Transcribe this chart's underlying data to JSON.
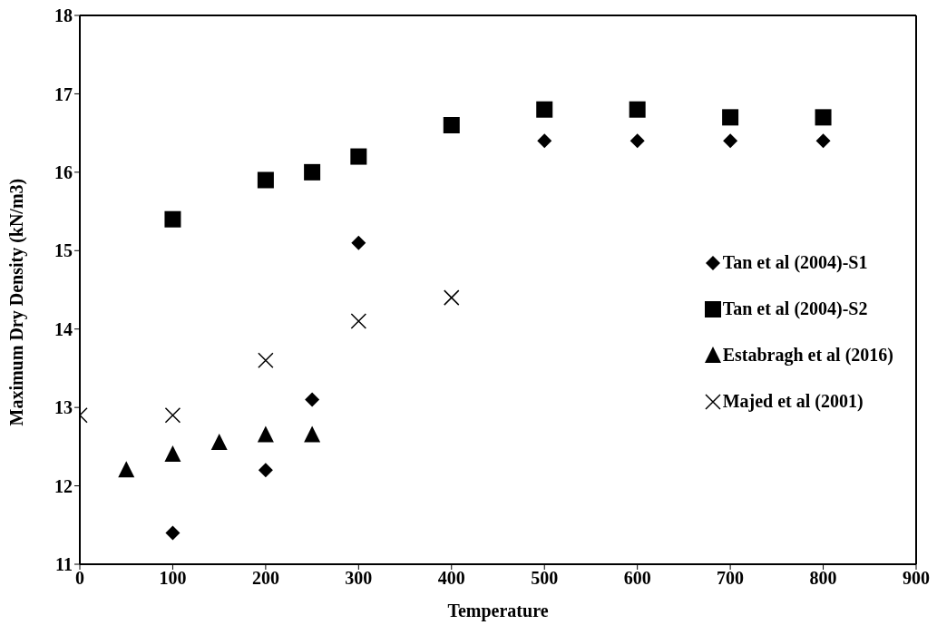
{
  "chart_data": {
    "type": "scatter",
    "xlabel": "Temperature",
    "ylabel": "Maximum Dry Density (kN/m3)",
    "xlim": [
      0,
      900
    ],
    "xticks": [
      0,
      100,
      200,
      300,
      400,
      500,
      600,
      700,
      800,
      900
    ],
    "ylim": [
      11,
      18
    ],
    "yticks": [
      11,
      12,
      13,
      14,
      15,
      16,
      17,
      18
    ],
    "grid": false,
    "legend": "right",
    "series": [
      {
        "name": "Tan et al (2004)-S1",
        "color": "#000000",
        "marker": "diamond",
        "x": [
          100,
          200,
          250,
          300,
          500,
          600,
          700,
          800
        ],
        "values": [
          11.4,
          12.2,
          13.1,
          15.1,
          16.4,
          16.4,
          16.4,
          16.4
        ]
      },
      {
        "name": "Tan et al (2004)-S2",
        "color": "#000000",
        "marker": "square",
        "x": [
          100,
          200,
          250,
          300,
          400,
          500,
          600,
          700,
          800
        ],
        "values": [
          15.4,
          15.9,
          16.0,
          16.2,
          16.6,
          16.8,
          16.8,
          16.7,
          16.7
        ]
      },
      {
        "name": "Estabragh et al (2016)",
        "color": "#000000",
        "marker": "triangle",
        "x": [
          50,
          100,
          150,
          200,
          250
        ],
        "values": [
          12.2,
          12.4,
          12.55,
          12.65,
          12.65
        ]
      },
      {
        "name": "Majed et al (2001)",
        "color": "#000000",
        "marker": "cross",
        "x": [
          0,
          100,
          200,
          300,
          400
        ],
        "values": [
          12.9,
          12.9,
          13.6,
          14.1,
          14.4
        ]
      }
    ]
  }
}
